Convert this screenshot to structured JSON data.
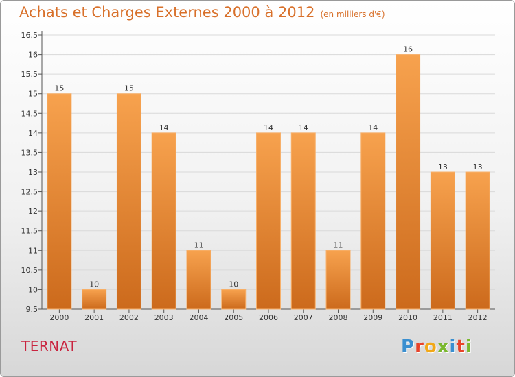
{
  "title": "Achats et Charges Externes 2000 à 2012",
  "unit": "(en milliers d'€)",
  "commune": "TERNAT",
  "logo": {
    "letters": [
      "P",
      "r",
      "o",
      "x",
      "i",
      "t",
      "i"
    ],
    "colors": [
      "#3a8fd0",
      "#e8432a",
      "#f2a818",
      "#7ab82e",
      "#3a8fd0",
      "#e8432a",
      "#7ab82e"
    ]
  },
  "chart_data": {
    "type": "bar",
    "categories": [
      "2000",
      "2001",
      "2002",
      "2003",
      "2004",
      "2005",
      "2006",
      "2007",
      "2008",
      "2009",
      "2010",
      "2011",
      "2012"
    ],
    "values": [
      15,
      10,
      15,
      14,
      11,
      10,
      14,
      14,
      11,
      14,
      16,
      13,
      13
    ],
    "ylim": [
      9.5,
      16.5
    ],
    "yticks": [
      "9.5",
      "10",
      "10.5",
      "11",
      "11.5",
      "12",
      "12.5",
      "13",
      "13.5",
      "14",
      "14.5",
      "15",
      "15.5",
      "16",
      "16.5"
    ],
    "grid": true,
    "bar_color": "#f0923c"
  }
}
